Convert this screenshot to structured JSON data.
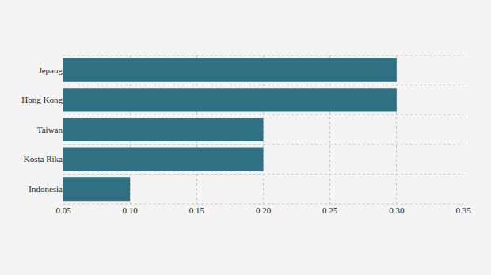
{
  "chart_data": {
    "type": "bar",
    "orientation": "horizontal",
    "categories": [
      "Jepang",
      "Hong Kong",
      "Taiwan",
      "Kosta Rika",
      "Indonesia"
    ],
    "values": [
      0.3,
      0.3,
      0.2,
      0.2,
      0.1
    ],
    "color": "#2f7083",
    "xlim": [
      0.05,
      0.35
    ],
    "xticks": [
      0.05,
      {
        "value": 0.1,
        "label": "0.10"
      },
      0.15,
      {
        "value": 0.2,
        "label": "0.20"
      },
      0.25,
      {
        "value": 0.3,
        "label": "0.30"
      },
      0.35
    ],
    "grid": true
  }
}
